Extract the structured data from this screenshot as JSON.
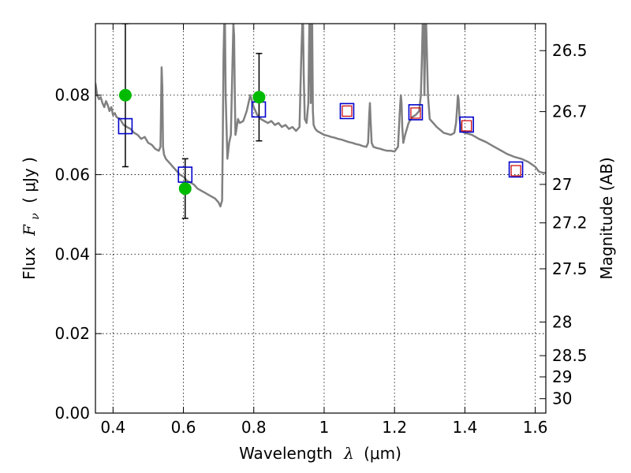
{
  "chart_data": {
    "type": "scatter",
    "xlabel_text": "Wavelength",
    "xlabel_symbol": "λ",
    "xlabel_unit": "(μm)",
    "ylabel_text": "Flux",
    "ylabel_symbol": "F",
    "ylabel_subscript": "ν",
    "ylabel_unit": "( μJy )",
    "y2label": "Magnitude (AB)",
    "xlim": [
      0.35,
      1.63
    ],
    "ylim": [
      0.0,
      0.098
    ],
    "grid": true,
    "x_ticks": [
      0.4,
      0.6,
      0.8,
      1.0,
      1.2,
      1.4,
      1.6
    ],
    "x_tick_labels": [
      "0.4",
      "0.6",
      "0.8",
      "1",
      "1.2",
      "1.4",
      "1.6"
    ],
    "y_ticks": [
      0.0,
      0.02,
      0.04,
      0.06,
      0.08
    ],
    "y_tick_labels": [
      "0.00",
      "0.02",
      "0.04",
      "0.06",
      "0.08"
    ],
    "mag_ticks": [
      26.5,
      26.7,
      27,
      27.2,
      27.5,
      28,
      28.5,
      29,
      30
    ],
    "mag_tick_labels": [
      "26.5",
      "26.7",
      "27",
      "27.2",
      "27.5",
      "28",
      "28.5",
      "29",
      "30"
    ],
    "colors": {
      "spectrum": "#808080",
      "observed": "#00bb00",
      "errorbar": "#000000",
      "model_box": "#0000cc",
      "model_box_inner": "#cc0000",
      "grid": "#000000"
    },
    "series": [
      {
        "kind": "observed_points",
        "points": [
          {
            "x": 0.435,
            "y": 0.08,
            "err_low": 0.062,
            "err_high": 0.098
          },
          {
            "x": 0.605,
            "y": 0.0565,
            "err_low": 0.049,
            "err_high": 0.064
          },
          {
            "x": 0.815,
            "y": 0.0795,
            "err_low": 0.0685,
            "err_high": 0.0905
          }
        ]
      },
      {
        "kind": "model_photometry",
        "points": [
          {
            "x": 0.435,
            "y": 0.0722
          },
          {
            "x": 0.605,
            "y": 0.06
          },
          {
            "x": 0.814,
            "y": 0.0764
          },
          {
            "x": 1.065,
            "y": 0.076
          },
          {
            "x": 1.26,
            "y": 0.0757
          },
          {
            "x": 1.405,
            "y": 0.0726
          },
          {
            "x": 1.545,
            "y": 0.0613
          }
        ]
      },
      {
        "kind": "observed_nir_boxes",
        "points": [
          {
            "x": 1.065,
            "y": 0.076
          },
          {
            "x": 1.26,
            "y": 0.0755
          },
          {
            "x": 1.405,
            "y": 0.0723
          },
          {
            "x": 1.545,
            "y": 0.061
          }
        ]
      },
      {
        "kind": "spectrum",
        "x": [
          0.35,
          0.355,
          0.36,
          0.365,
          0.37,
          0.375,
          0.38,
          0.385,
          0.39,
          0.395,
          0.4,
          0.405,
          0.41,
          0.42,
          0.43,
          0.44,
          0.45,
          0.46,
          0.47,
          0.48,
          0.49,
          0.5,
          0.51,
          0.52,
          0.53,
          0.535,
          0.538,
          0.54,
          0.542,
          0.545,
          0.55,
          0.56,
          0.57,
          0.58,
          0.59,
          0.6,
          0.61,
          0.62,
          0.63,
          0.64,
          0.65,
          0.66,
          0.67,
          0.68,
          0.69,
          0.7,
          0.705,
          0.71,
          0.712,
          0.714,
          0.716,
          0.718,
          0.72,
          0.725,
          0.73,
          0.735,
          0.74,
          0.742,
          0.744,
          0.746,
          0.748,
          0.75,
          0.755,
          0.76,
          0.77,
          0.78,
          0.79,
          0.8,
          0.81,
          0.82,
          0.83,
          0.84,
          0.85,
          0.86,
          0.87,
          0.88,
          0.89,
          0.9,
          0.91,
          0.92,
          0.93,
          0.935,
          0.938,
          0.94,
          0.942,
          0.945,
          0.95,
          0.955,
          0.958,
          0.96,
          0.962,
          0.964,
          0.966,
          0.968,
          0.97,
          0.975,
          0.98,
          0.99,
          1.0,
          1.01,
          1.02,
          1.03,
          1.04,
          1.05,
          1.06,
          1.07,
          1.08,
          1.09,
          1.1,
          1.11,
          1.12,
          1.125,
          1.128,
          1.13,
          1.132,
          1.135,
          1.14,
          1.15,
          1.16,
          1.17,
          1.18,
          1.19,
          1.2,
          1.21,
          1.215,
          1.218,
          1.22,
          1.222,
          1.225,
          1.23,
          1.24,
          1.25,
          1.26,
          1.27,
          1.275,
          1.278,
          1.28,
          1.283,
          1.285,
          1.288,
          1.29,
          1.295,
          1.3,
          1.32,
          1.34,
          1.36,
          1.37,
          1.375,
          1.378,
          1.38,
          1.382,
          1.385,
          1.39,
          1.4,
          1.42,
          1.44,
          1.46,
          1.48,
          1.5,
          1.52,
          1.54,
          1.56,
          1.58,
          1.6,
          1.61,
          1.62,
          1.63
        ],
        "y": [
          0.083,
          0.08,
          0.079,
          0.0795,
          0.078,
          0.077,
          0.0785,
          0.0775,
          0.076,
          0.077,
          0.075,
          0.0755,
          0.0745,
          0.074,
          0.0725,
          0.072,
          0.0715,
          0.0705,
          0.07,
          0.069,
          0.0695,
          0.068,
          0.0675,
          0.0665,
          0.066,
          0.067,
          0.087,
          0.082,
          0.067,
          0.065,
          0.064,
          0.063,
          0.062,
          0.061,
          0.06,
          0.0595,
          0.0585,
          0.058,
          0.0575,
          0.0565,
          0.056,
          0.0555,
          0.055,
          0.0545,
          0.054,
          0.053,
          0.052,
          0.0535,
          0.07,
          0.09,
          0.098,
          0.098,
          0.08,
          0.064,
          0.068,
          0.07,
          0.09,
          0.098,
          0.095,
          0.08,
          0.07,
          0.071,
          0.074,
          0.073,
          0.0735,
          0.076,
          0.08,
          0.077,
          0.075,
          0.074,
          0.0735,
          0.073,
          0.0735,
          0.0725,
          0.073,
          0.072,
          0.0725,
          0.0715,
          0.072,
          0.071,
          0.072,
          0.09,
          0.098,
          0.098,
          0.085,
          0.074,
          0.073,
          0.078,
          0.098,
          0.098,
          0.078,
          0.098,
          0.098,
          0.076,
          0.0725,
          0.0715,
          0.071,
          0.0705,
          0.07,
          0.0698,
          0.0695,
          0.0693,
          0.069,
          0.0688,
          0.0685,
          0.0682,
          0.068,
          0.0677,
          0.0675,
          0.0672,
          0.067,
          0.068,
          0.075,
          0.078,
          0.074,
          0.068,
          0.067,
          0.0667,
          0.0665,
          0.0662,
          0.066,
          0.066,
          0.0658,
          0.067,
          0.076,
          0.08,
          0.078,
          0.072,
          0.068,
          0.07,
          0.073,
          0.0745,
          0.075,
          0.076,
          0.08,
          0.09,
          0.098,
          0.098,
          0.08,
          0.098,
          0.098,
          0.08,
          0.074,
          0.072,
          0.0705,
          0.07,
          0.0705,
          0.073,
          0.077,
          0.08,
          0.079,
          0.074,
          0.071,
          0.0705,
          0.07,
          0.069,
          0.0682,
          0.0672,
          0.0662,
          0.0652,
          0.0645,
          0.064,
          0.0632,
          0.062,
          0.0608,
          0.0605,
          0.0604
        ]
      }
    ]
  }
}
